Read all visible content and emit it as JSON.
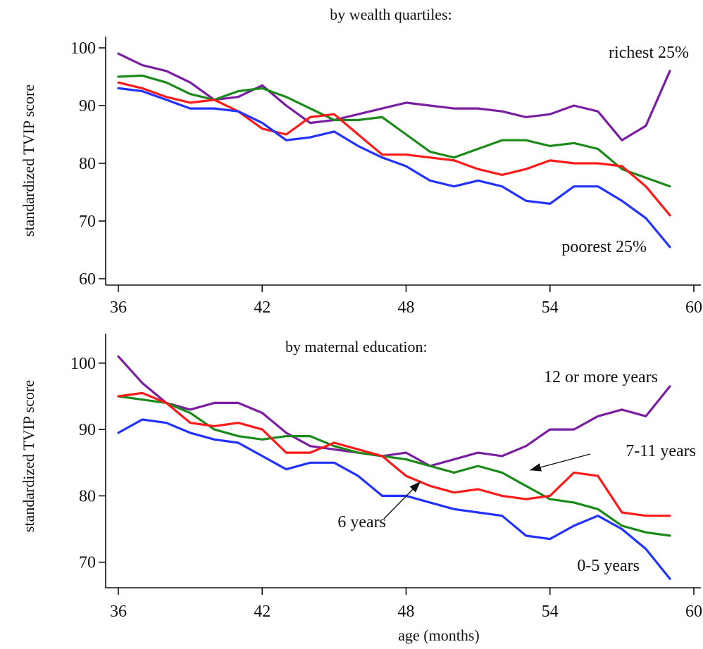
{
  "xlabel": "age (months)",
  "colors": {
    "purple": "#7b1fa2",
    "green": "#1b8a1b",
    "red": "#ff1a1a",
    "blue": "#2233ff",
    "axis": "#111111"
  },
  "chart_data": [
    {
      "type": "line",
      "title": "by wealth quartiles:",
      "xlabel": "",
      "ylabel": "standardized TVIP score",
      "xlim": [
        36,
        60
      ],
      "ylim": [
        60,
        100
      ],
      "xticks": [
        "36",
        "42",
        "48",
        "54",
        "60"
      ],
      "yticks": [
        "60",
        "70",
        "80",
        "90",
        "100"
      ],
      "x": [
        36,
        37,
        38,
        39,
        40,
        41,
        42,
        43,
        44,
        45,
        46,
        47,
        48,
        49,
        50,
        51,
        52,
        53,
        54,
        55,
        56,
        57,
        58,
        59
      ],
      "series": [
        {
          "color": "purple",
          "values": [
            99,
            97,
            96,
            94,
            91,
            91.5,
            93.5,
            90,
            87,
            87.5,
            88.5,
            89.5,
            90.5,
            90,
            89.5,
            89.5,
            89,
            88,
            88.5,
            90,
            89,
            84,
            86.5,
            96
          ]
        },
        {
          "color": "green",
          "values": [
            95,
            95.2,
            94,
            92,
            91,
            92.5,
            93,
            91.5,
            89.5,
            87.5,
            87.5,
            88,
            85,
            82,
            81,
            82.5,
            84,
            84,
            83,
            83.5,
            82.5,
            79,
            77.5,
            76
          ]
        },
        {
          "color": "red",
          "values": [
            94,
            93,
            91.5,
            90.5,
            91,
            89,
            86,
            85,
            88,
            88.5,
            85,
            81.5,
            81.5,
            81,
            80.5,
            79,
            78,
            79,
            80.5,
            80,
            80,
            79.5,
            76,
            71
          ]
        },
        {
          "color": "blue",
          "values": [
            93,
            92.5,
            91,
            89.5,
            89.5,
            89,
            87,
            84,
            84.5,
            85.5,
            83,
            81,
            79.5,
            77,
            76,
            77,
            76,
            73.5,
            73,
            76,
            76,
            73.5,
            70.5,
            65.5
          ]
        }
      ],
      "annotations": [
        {
          "text": "richest 25%"
        },
        {
          "text": "poorest 25%"
        }
      ]
    },
    {
      "type": "line",
      "title": "by maternal education:",
      "xlabel": "age (months)",
      "ylabel": "standardized TVIP score",
      "xlim": [
        36,
        60
      ],
      "ylim": [
        67,
        102
      ],
      "xticks": [
        "36",
        "42",
        "48",
        "54",
        "60"
      ],
      "yticks": [
        "70",
        "80",
        "90",
        "100"
      ],
      "x": [
        36,
        37,
        38,
        39,
        40,
        41,
        42,
        43,
        44,
        45,
        46,
        47,
        48,
        49,
        50,
        51,
        52,
        53,
        54,
        55,
        56,
        57,
        58,
        59
      ],
      "series": [
        {
          "color": "purple",
          "values": [
            101,
            97,
            94,
            93,
            94,
            94,
            92.5,
            89.5,
            87.5,
            87,
            86.5,
            86,
            86.5,
            84.5,
            85.5,
            86.5,
            86,
            87.5,
            90,
            90,
            92,
            93,
            92,
            96.5
          ]
        },
        {
          "color": "green",
          "values": [
            95,
            94.5,
            94,
            92.5,
            90,
            89,
            88.5,
            89,
            89,
            87.5,
            86.5,
            86,
            85.5,
            84.5,
            83.5,
            84.5,
            83.5,
            81.5,
            79.5,
            79,
            78,
            75.5,
            74.5,
            74
          ]
        },
        {
          "color": "red",
          "values": [
            95,
            95.5,
            94,
            91,
            90.5,
            91,
            90,
            86.5,
            86.5,
            88,
            87,
            86,
            83,
            81.5,
            80.5,
            81,
            80,
            79.5,
            80,
            83.5,
            83,
            77.5,
            77,
            77
          ]
        },
        {
          "color": "blue",
          "values": [
            89.5,
            91.5,
            91,
            89.5,
            88.5,
            88,
            86,
            84,
            85,
            85,
            83,
            80,
            80,
            79,
            78,
            77.5,
            77,
            74,
            73.5,
            75.5,
            77,
            75,
            72,
            67.5
          ]
        }
      ],
      "annotations": [
        {
          "text": "12 or more years"
        },
        {
          "text": "7-11 years"
        },
        {
          "text": "6 years"
        },
        {
          "text": "0-5 years"
        }
      ]
    }
  ]
}
